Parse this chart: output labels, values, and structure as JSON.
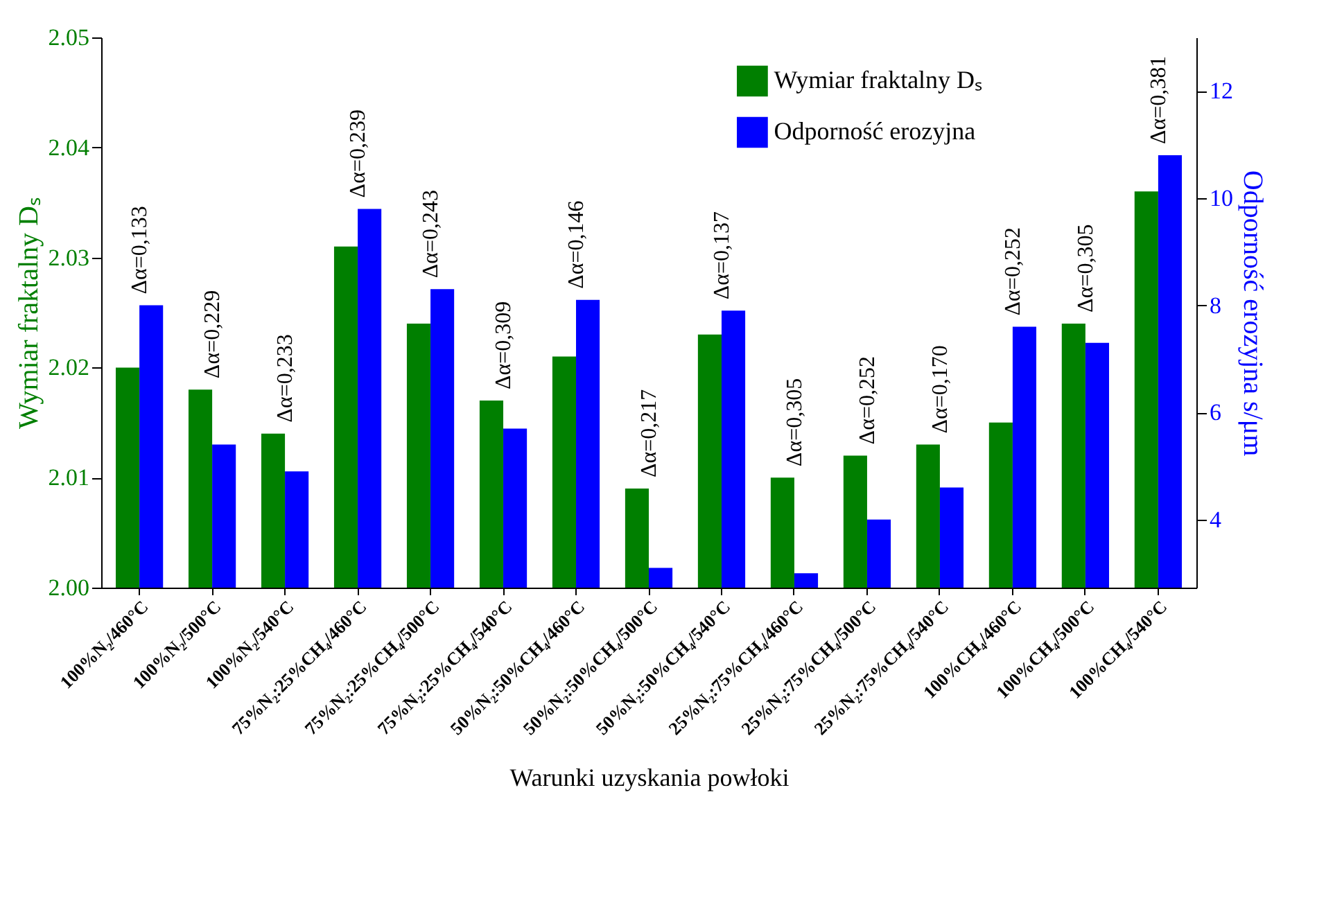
{
  "chart_data": {
    "type": "bar",
    "xlabel": "Warunki uzyskania powłoki",
    "ylabel": "Wymiar fraktalny Dₛ",
    "y2label": "Odporność erozyjna s/μm",
    "categories": [
      "100%N₂/460°C",
      "100%N₂/500°C",
      "100%N₂/540°C",
      "75%N₂:25%CH₄/460°C",
      "75%N₂:25%CH₄/500°C",
      "75%N₂:25%CH₄/540°C",
      "50%N₂:50%CH₄/460°C",
      "50%N₂:50%CH₄/500°C",
      "50%N₂:50%CH₄/540°C",
      "25%N₂:75%CH₄/460°C",
      "25%N₂:75%CH₄/500°C",
      "25%N₂:75%CH₄/540°C",
      "100%CH₄/460°C",
      "100%CH₄/500°C",
      "100%CH₄/540°C"
    ],
    "series": [
      {
        "name": "Wymiar fraktalny Dₛ",
        "color": "#007f00",
        "values": [
          2.02,
          2.018,
          2.014,
          2.031,
          2.024,
          2.017,
          2.021,
          2.009,
          2.023,
          2.01,
          2.012,
          2.013,
          2.015,
          2.024,
          2.036
        ]
      },
      {
        "name": "Odporność erozyjna",
        "color": "#0000ff",
        "axis": "y2",
        "values": [
          8.0,
          5.4,
          4.9,
          9.8,
          8.3,
          5.7,
          8.1,
          3.1,
          7.9,
          3.0,
          4.0,
          4.6,
          7.6,
          7.3,
          10.8
        ]
      }
    ],
    "ylim": [
      2.0,
      2.05
    ],
    "yticks": [
      {
        "value": 2.0,
        "label": "2.00"
      },
      {
        "value": 2.01,
        "label": "2.01"
      },
      {
        "value": 2.02,
        "label": "2.02"
      },
      {
        "value": 2.03,
        "label": "2.03"
      },
      {
        "value": 2.04,
        "label": "2.04"
      },
      {
        "value": 2.05,
        "label": "2.05"
      }
    ],
    "y2lim": [
      2.73,
      13.0
    ],
    "y2ticks": [
      4,
      6,
      8,
      10,
      12
    ],
    "legend": "top right",
    "grid": false,
    "annotations": [
      "Δα=0,133",
      "Δα=0,229",
      "Δα=0,233",
      "Δα=0,239",
      "Δα=0,243",
      "Δα=0,309",
      "Δα=0,146",
      "Δα=0,217",
      "Δα=0,137",
      "Δα=0,305",
      "Δα=0,252",
      "Δα=0,170",
      "Δα=0,252",
      "Δα=0,305",
      "Δα=0,381"
    ]
  }
}
